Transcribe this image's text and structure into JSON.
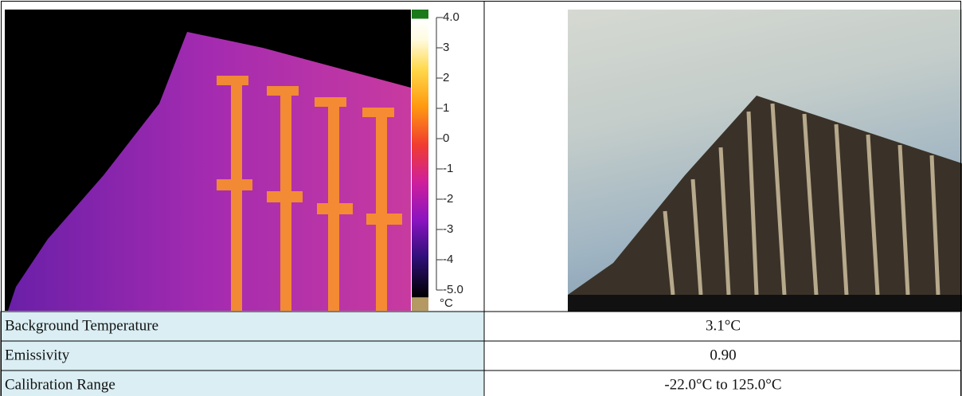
{
  "thermal_scale": {
    "labels": [
      "4.0",
      "3",
      "2",
      "1",
      "0",
      "-1",
      "-2",
      "-3",
      "-4",
      "-5.0"
    ],
    "unit": "°C"
  },
  "table": {
    "rows": [
      [
        "Background Temperature",
        "3.1°C"
      ],
      [
        "Emissivity",
        "0.90"
      ],
      [
        "Calibration Range",
        "-22.0°C to 125.0°C"
      ]
    ]
  }
}
